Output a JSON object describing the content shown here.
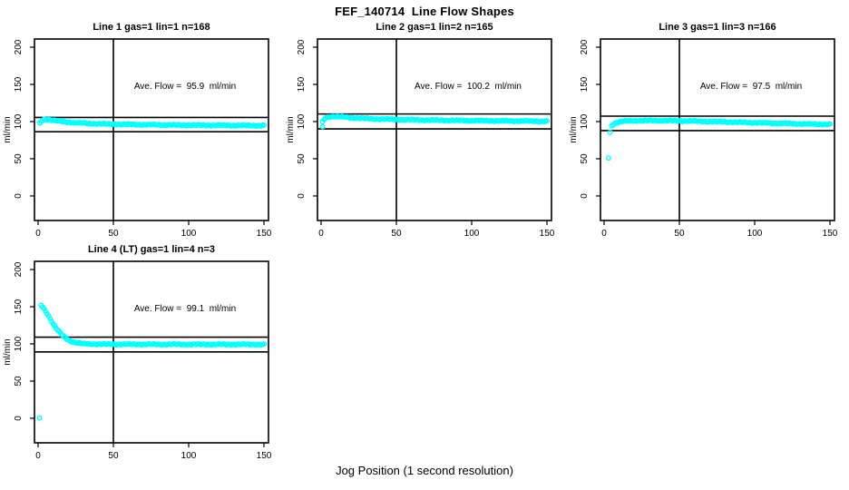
{
  "title": "FEF_140714  Line Flow Shapes",
  "chart_data": {
    "type": "scatter",
    "title": "FEF_140714  Line Flow Shapes",
    "xlabel": "Jog Position (1 second resolution)",
    "ylabel": "ml/min",
    "x_ticks": [
      0,
      50,
      100,
      150
    ],
    "y_ticks": [
      0,
      50,
      100,
      150,
      200
    ],
    "xlim": [
      -2.4,
      153
    ],
    "ylim": [
      -33,
      211
    ],
    "grid": false,
    "legend": "none",
    "point_color": "#00FFFF",
    "line_color": "#000000",
    "vline_x": 50,
    "panels": [
      {
        "title": "Line 1 gas=1 lin=1 n=168",
        "annotation": "Ave. Flow =  95.9  ml/min",
        "ave_flow_ml_min": 95.9,
        "n": 168,
        "hline_upper": 105.5,
        "hline_lower": 86.3,
        "curve_keypoints_xy": [
          [
            1,
            97.5
          ],
          [
            2,
            100.5
          ],
          [
            3,
            102
          ],
          [
            4,
            102.8
          ],
          [
            6,
            103
          ],
          [
            9,
            102.2
          ],
          [
            13,
            100.8
          ],
          [
            18,
            99.6
          ],
          [
            25,
            98.4
          ],
          [
            35,
            97.4
          ],
          [
            50,
            96.5
          ],
          [
            70,
            95.8
          ],
          [
            95,
            95.2
          ],
          [
            120,
            94.9
          ],
          [
            150,
            94.6
          ]
        ],
        "outlier_points_xy": []
      },
      {
        "title": "Line 2 gas=1 lin=2 n=165",
        "annotation": "Ave. Flow =  100.2  ml/min",
        "ave_flow_ml_min": 100.2,
        "n": 165,
        "hline_upper": 110.2,
        "hline_lower": 90.2,
        "curve_keypoints_xy": [
          [
            1,
            99
          ],
          [
            2,
            103
          ],
          [
            3,
            105
          ],
          [
            5,
            106.3
          ],
          [
            8,
            107
          ],
          [
            12,
            106.6
          ],
          [
            18,
            105.6
          ],
          [
            25,
            104.6
          ],
          [
            35,
            103.6
          ],
          [
            50,
            102.8
          ],
          [
            70,
            102
          ],
          [
            95,
            101.4
          ],
          [
            120,
            100.9
          ],
          [
            150,
            100.4
          ]
        ],
        "outlier_points_xy": [
          [
            1,
            93
          ]
        ]
      },
      {
        "title": "Line 3 gas=1 lin=3 n=166",
        "annotation": "Ave. Flow =  97.5  ml/min",
        "ave_flow_ml_min": 97.5,
        "n": 166,
        "hline_upper": 107.3,
        "hline_lower": 87.8,
        "curve_keypoints_xy": [
          [
            5,
            94.5
          ],
          [
            6,
            96.5
          ],
          [
            8,
            98.5
          ],
          [
            11,
            100
          ],
          [
            15,
            100.8
          ],
          [
            22,
            101.3
          ],
          [
            40,
            101.3
          ],
          [
            60,
            100.6
          ],
          [
            85,
            99.3
          ],
          [
            110,
            98
          ],
          [
            130,
            97
          ],
          [
            150,
            96.2
          ]
        ],
        "outlier_points_xy": [
          [
            3,
            51
          ],
          [
            4,
            85.5
          ]
        ]
      },
      {
        "title": "Line 4 (LT) gas=1 lin=4 n=3",
        "annotation": "Ave. Flow =  99.1  ml/min",
        "ave_flow_ml_min": 99.1,
        "n": 3,
        "hline_upper": 109.0,
        "hline_lower": 89.2,
        "curve_keypoints_xy": [
          [
            2,
            152
          ],
          [
            3,
            150
          ],
          [
            4,
            147
          ],
          [
            5,
            144
          ],
          [
            6,
            141
          ],
          [
            8,
            134
          ],
          [
            10,
            127
          ],
          [
            12,
            121
          ],
          [
            14,
            116
          ],
          [
            16,
            112
          ],
          [
            18,
            108.5
          ],
          [
            20,
            105.5
          ],
          [
            23,
            102.8
          ],
          [
            26,
            101.2
          ],
          [
            30,
            100.2
          ],
          [
            40,
            99.6
          ],
          [
            60,
            99.4
          ],
          [
            100,
            99.3
          ],
          [
            150,
            99.2
          ]
        ],
        "outlier_points_xy": [
          [
            1,
            0.5
          ]
        ]
      }
    ]
  }
}
